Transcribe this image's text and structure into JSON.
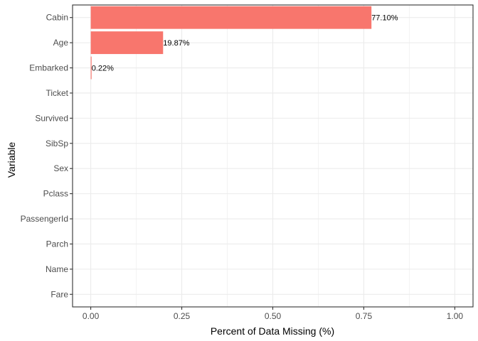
{
  "chart_data": {
    "type": "bar",
    "orientation": "horizontal",
    "categories": [
      "Cabin",
      "Age",
      "Embarked",
      "Ticket",
      "Survived",
      "SibSp",
      "Sex",
      "Pclass",
      "PassengerId",
      "Parch",
      "Name",
      "Fare"
    ],
    "values": [
      0.771,
      0.1987,
      0.0022,
      0,
      0,
      0,
      0,
      0,
      0,
      0,
      0,
      0
    ],
    "data_labels": [
      "77.10%",
      "19.87%",
      "0.22%",
      "",
      "",
      "",
      "",
      "",
      "",
      "",
      "",
      ""
    ],
    "xlabel": "Percent of Data Missing (%)",
    "ylabel": "Variable",
    "xlim": [
      -0.05,
      1.05
    ],
    "xticks": [
      0,
      0.25,
      0.5,
      0.75,
      1
    ],
    "xtick_labels": [
      "0.00",
      "0.25",
      "0.50",
      "0.75",
      "1.00"
    ],
    "grid": true,
    "colors": {
      "bar": "#F8766D",
      "grid": "#EBEBEB",
      "panel_border": "#333333",
      "text": "#4D4D4D"
    }
  }
}
